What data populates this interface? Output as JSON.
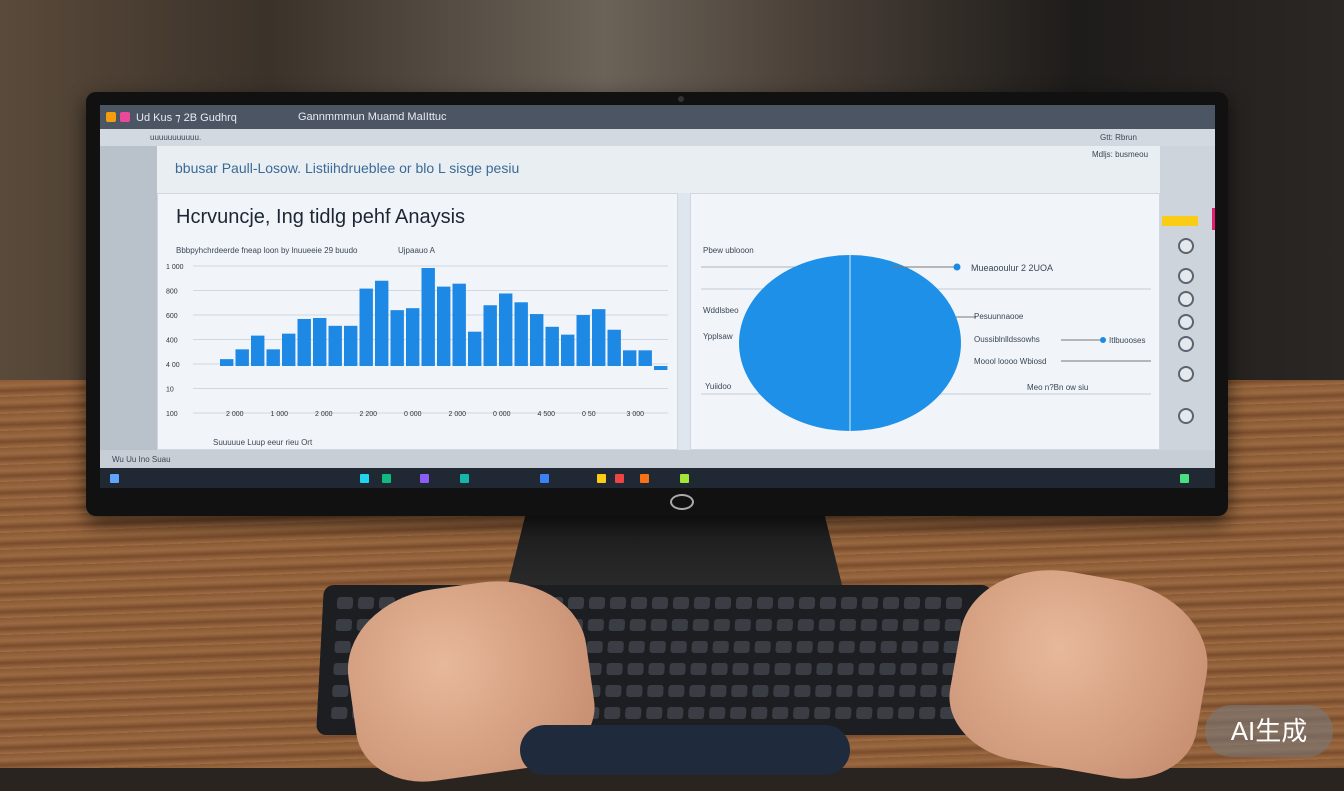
{
  "window": {
    "title_left": "Ud Kus ⁊ 2B Gudhrq",
    "title_center": "Gannmmmun Muamd MaIIttuc",
    "toolbar_left": "uuuuuuuuuuu.",
    "toolbar_right": "Gtt: Rbrun"
  },
  "header": {
    "text": "bbusar Paull-Losow. Listiihdrueblee or blo L sisge pesiu",
    "right": "Mdljs: busmeou"
  },
  "left_card": {
    "title": "Hcrvuncje, Ing tidlg pehf Anaysis",
    "legend": "Bbbpyhchrdeerde fneap loon by lnuueeie  29  buudo",
    "legend2": "Ujpaauo A",
    "footer": "Suuuuue   Luup eeur rieu Ort"
  },
  "chart_data": {
    "type": "bar",
    "title": "Hcrvuncje, Ing tidlg pehf Anaysis",
    "yticks": [
      "1 000",
      "800",
      "600",
      "400",
      "4 00",
      "10",
      "100"
    ],
    "xticks": [
      "2 000",
      "1 000",
      "2 000",
      "2 200",
      "0 000",
      "2 000",
      "0 000",
      "4 500",
      "0 50",
      "3 000"
    ],
    "values": [
      7,
      17,
      31,
      17,
      33,
      48,
      49,
      41,
      41,
      79,
      87,
      57,
      59,
      100,
      81,
      84,
      35,
      62,
      74,
      65,
      53,
      40,
      32,
      52,
      58,
      37,
      16,
      16,
      -4
    ],
    "color": "#1e88e5",
    "grid": true
  },
  "right_card": {
    "title": "Pbew ublooon",
    "labels_left": [
      "Wddlsbeo",
      "Ypplsaw",
      "Yuiidoo"
    ],
    "labels_right": [
      "Mueaooulur 2 2UOA",
      "Pesuunnaooe",
      "Oussiblnlldssowhs",
      "Moool loooo Wbiosd",
      "Meo n?Bn ow siu"
    ],
    "label_far": "Itlbuooses",
    "pie_color": "#1e90e8"
  },
  "statusbar": {
    "text": "Wu Uu Ino  Suau"
  },
  "watermark": "AI生成"
}
